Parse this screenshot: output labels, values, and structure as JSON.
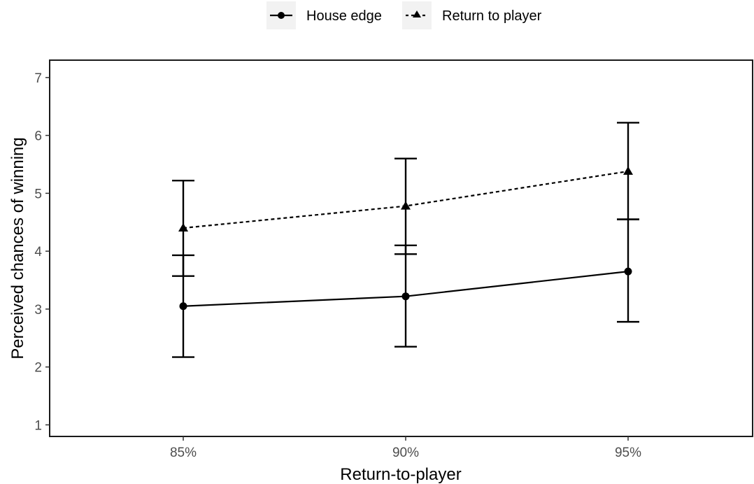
{
  "chart_data": {
    "type": "line",
    "title": "",
    "xlabel": "Return-to-player",
    "ylabel": "Perceived chances of winning",
    "categories": [
      "85%",
      "90%",
      "95%"
    ],
    "ylim": [
      0.8,
      7.3
    ],
    "yticks": [
      "1",
      "2",
      "3",
      "4",
      "5",
      "6",
      "7"
    ],
    "legend_position": "top",
    "grid": false,
    "series": [
      {
        "name": "House edge",
        "values": [
          3.05,
          3.22,
          3.65
        ],
        "error_low": [
          2.17,
          2.35,
          2.78
        ],
        "error_high": [
          3.93,
          4.1,
          4.55
        ],
        "marker": "circle",
        "line_style": "solid",
        "color": "#000000"
      },
      {
        "name": "Return to player",
        "values": [
          4.4,
          4.78,
          5.38
        ],
        "error_low": [
          3.57,
          3.95,
          4.55
        ],
        "error_high": [
          5.22,
          5.6,
          6.22
        ],
        "marker": "triangle",
        "line_style": "dashed",
        "color": "#000000"
      }
    ]
  }
}
